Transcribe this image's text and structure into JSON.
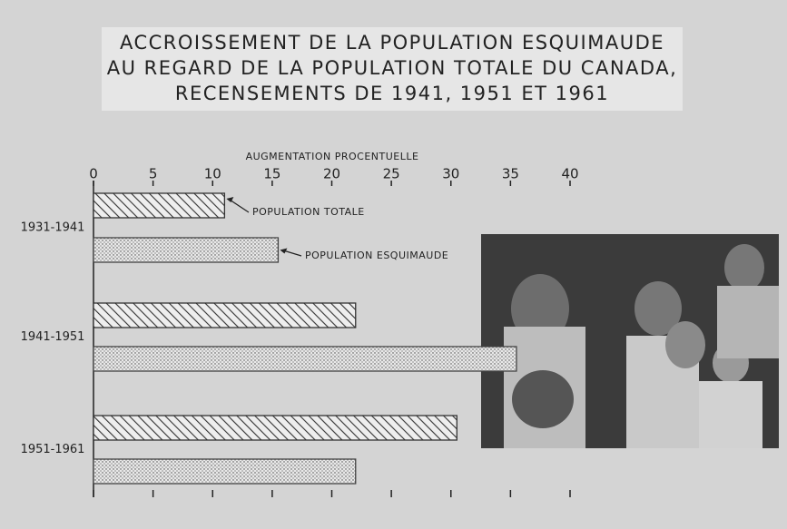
{
  "chart_data": {
    "type": "bar",
    "orientation": "horizontal",
    "title": [
      "ACCROISSEMENT DE LA POPULATION ESQUIMAUDE",
      "AU REGARD DE LA POPULATION TOTALE DU CANADA,",
      "RECENSEMENTS DE 1941, 1951 ET 1961"
    ],
    "xlabel": "AUGMENTATION PROCENTUELLE",
    "categories": [
      "1931-1941",
      "1941-1951",
      "1951-1961"
    ],
    "series": [
      {
        "name": "POPULATION TOTALE",
        "color": "#333333",
        "values": [
          11,
          22,
          30.5
        ]
      },
      {
        "name": "POPULATION ESQUIMAUDE",
        "color": "#444444",
        "values": [
          15.5,
          35.5,
          22
        ]
      }
    ],
    "xlim": [
      0,
      40
    ],
    "xticks": [
      0,
      5,
      10,
      15,
      20,
      25,
      30,
      35,
      40
    ]
  }
}
